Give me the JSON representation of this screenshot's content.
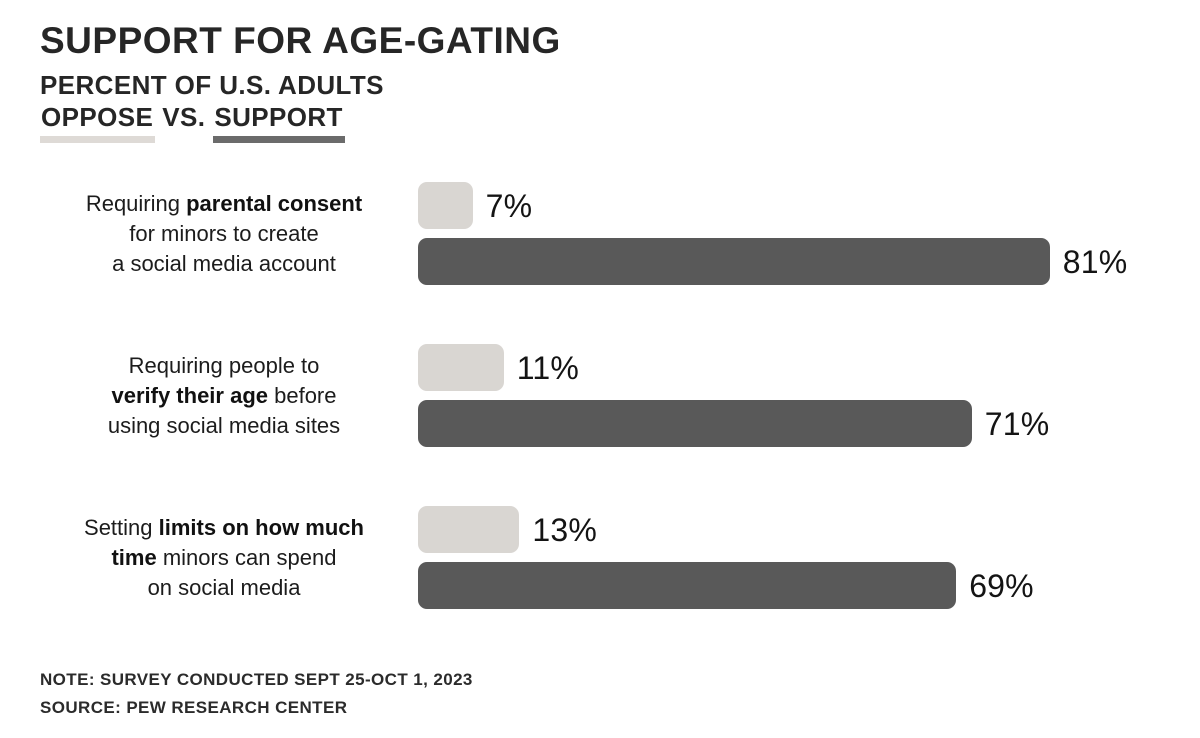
{
  "header": {
    "title": "SUPPORT FOR AGE-GATING",
    "subtitle": "PERCENT OF U.S. ADULTS",
    "legend": {
      "oppose": "OPPOSE",
      "vs": "VS.",
      "support": "SUPPORT",
      "oppose_underline_color": "#dedad6",
      "support_underline_color": "#6b6b6b"
    }
  },
  "chart_data": {
    "type": "bar",
    "orientation": "horizontal",
    "title": "SUPPORT FOR AGE-GATING",
    "subtitle": "PERCENT OF U.S. ADULTS — OPPOSE VS. SUPPORT",
    "xlim": [
      0,
      100
    ],
    "value_suffix": "%",
    "grid": false,
    "legend_position": "title-underline",
    "categories": [
      "Requiring parental consent for minors to create a social media account",
      "Requiring people to verify their age before using social media sites",
      "Setting limits on how much time minors can spend on social media"
    ],
    "category_lines": [
      [
        "Requiring **parental consent**",
        "for minors to create",
        "a social media account"
      ],
      [
        "Requiring people to",
        "**verify their age** before",
        "using social media sites"
      ],
      [
        "Setting **limits on how much**",
        "**time** minors can spend",
        "on social media"
      ]
    ],
    "series": [
      {
        "name": "Oppose",
        "color": "#d9d6d2",
        "values": [
          7,
          11,
          13
        ]
      },
      {
        "name": "Support",
        "color": "#595959",
        "values": [
          81,
          71,
          69
        ]
      }
    ]
  },
  "notes": {
    "note": "NOTE: SURVEY CONDUCTED SEPT 25-OCT 1, 2023",
    "source": "SOURCE: PEW RESEARCH CENTER"
  }
}
